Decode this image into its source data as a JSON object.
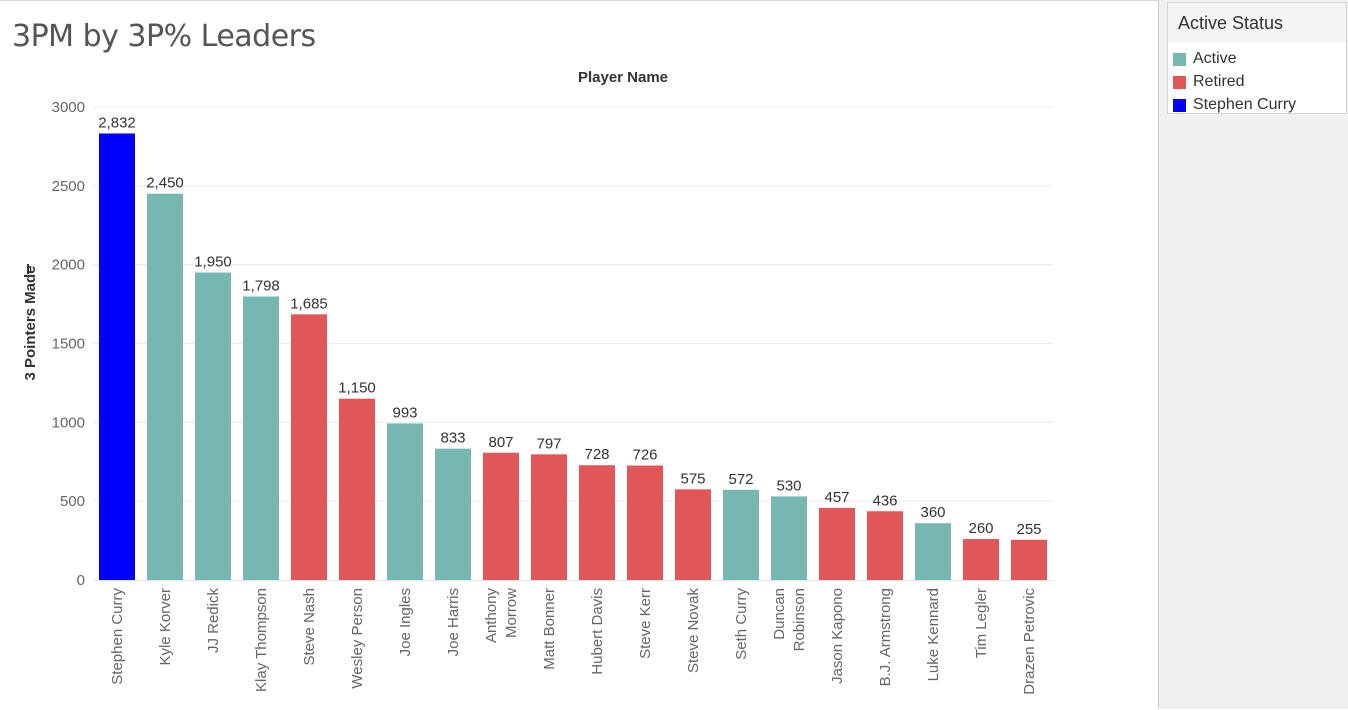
{
  "title": "3PM by 3P% Leaders",
  "legend": {
    "title": "Active Status",
    "items": [
      {
        "label": "Active",
        "color": "#76b7b2"
      },
      {
        "label": "Retired",
        "color": "#e15759"
      },
      {
        "label": "Stephen Curry",
        "color": "#0000ff"
      }
    ]
  },
  "chart_data": {
    "type": "bar",
    "title": "3PM by 3P% Leaders",
    "xlabel": "Player Name",
    "ylabel": "3 Pointers Made",
    "ylim": [
      0,
      3000
    ],
    "yticks": [
      0,
      500,
      1000,
      1500,
      2000,
      2500,
      3000
    ],
    "grid": true,
    "legend_position": "top-right",
    "categories": [
      [
        "Stephen Curry"
      ],
      [
        "Kyle Korver"
      ],
      [
        "JJ Redick"
      ],
      [
        "Klay Thompson"
      ],
      [
        "Steve Nash"
      ],
      [
        "Wesley Person"
      ],
      [
        "Joe Ingles"
      ],
      [
        "Joe Harris"
      ],
      [
        "Anthony",
        "Morrow"
      ],
      [
        "Matt Bonner"
      ],
      [
        "Hubert Davis"
      ],
      [
        "Steve Kerr"
      ],
      [
        "Steve Novak"
      ],
      [
        "Seth Curry"
      ],
      [
        "Duncan",
        "Robinson"
      ],
      [
        "Jason Kapono"
      ],
      [
        "B.J. Armstrong"
      ],
      [
        "Luke Kennard"
      ],
      [
        "Tim Legler"
      ],
      [
        "Drazen Petrovic"
      ]
    ],
    "values": [
      2832,
      2450,
      1950,
      1798,
      1685,
      1150,
      993,
      833,
      807,
      797,
      728,
      726,
      575,
      572,
      530,
      457,
      436,
      360,
      260,
      255
    ],
    "labels": [
      "2,832",
      "2,450",
      "1,950",
      "1,798",
      "1,685",
      "1,150",
      "993",
      "833",
      "807",
      "797",
      "728",
      "726",
      "575",
      "572",
      "530",
      "457",
      "436",
      "360",
      "260",
      "255"
    ],
    "status": [
      "Stephen Curry",
      "Active",
      "Active",
      "Active",
      "Retired",
      "Retired",
      "Active",
      "Active",
      "Retired",
      "Retired",
      "Retired",
      "Retired",
      "Retired",
      "Active",
      "Active",
      "Retired",
      "Retired",
      "Active",
      "Retired",
      "Retired"
    ]
  }
}
